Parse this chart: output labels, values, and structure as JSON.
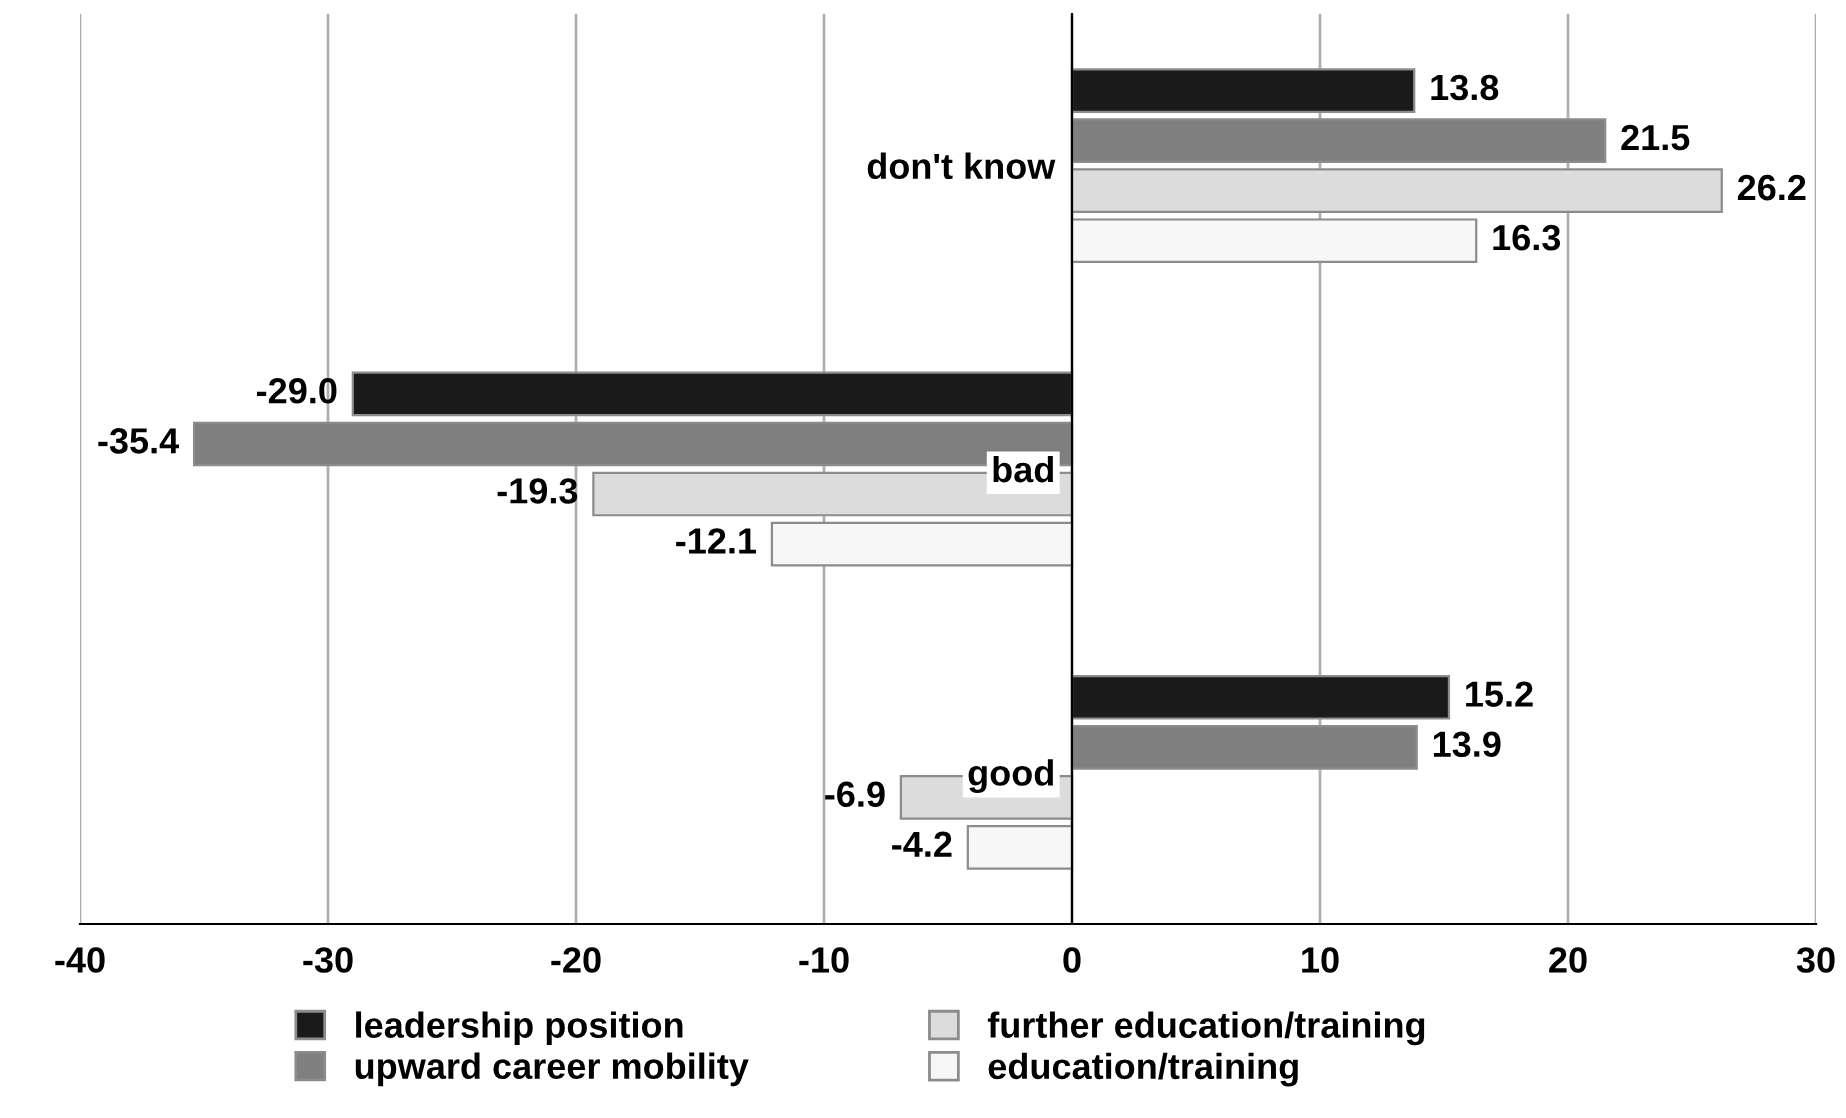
{
  "chart_data": {
    "type": "bar",
    "orientation": "horizontal",
    "categories": [
      "don't know",
      "bad",
      "good"
    ],
    "series": [
      {
        "name": "leadership position",
        "color": "#1a1a1a",
        "values": [
          13.8,
          -29.0,
          15.2
        ],
        "value_labels": [
          "13.8",
          "-29.0",
          "15.2"
        ]
      },
      {
        "name": "upward career mobility",
        "color": "#7f7f7f",
        "values": [
          21.5,
          -35.4,
          13.9
        ],
        "value_labels": [
          "21.5",
          "-35.4",
          "13.9"
        ]
      },
      {
        "name": "further education/training",
        "color": "#dcdcdc",
        "values": [
          26.2,
          -19.3,
          -6.9
        ],
        "value_labels": [
          "26.2",
          "-19.3",
          "-6.9"
        ]
      },
      {
        "name": "education/training",
        "color": "#f7f7f7",
        "values": [
          16.3,
          -12.1,
          -4.2
        ],
        "value_labels": [
          "16.3",
          "-12.1",
          "-4.2"
        ]
      }
    ],
    "xlim": [
      -40,
      30
    ],
    "xticks": [
      -40,
      -30,
      -20,
      -10,
      0,
      10,
      20,
      30
    ],
    "grid": "x",
    "legend": "bottom"
  }
}
